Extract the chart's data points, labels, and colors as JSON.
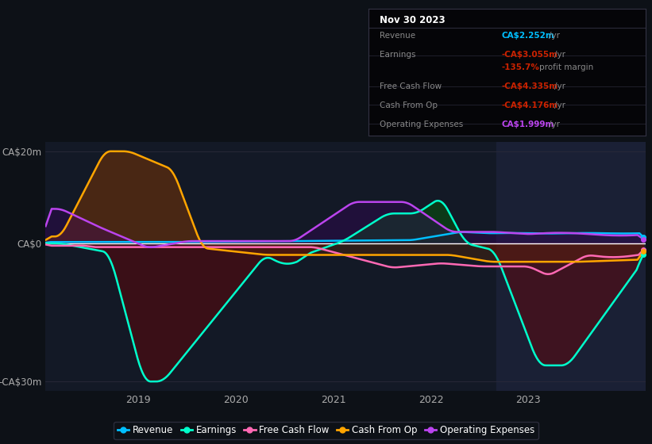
{
  "bg_color": "#0d1117",
  "plot_bg_color": "#131926",
  "highlight_bg_color": "#1a2035",
  "ylim": [
    -32,
    22
  ],
  "xlim": [
    2018.05,
    2024.2
  ],
  "yticks": [
    -30,
    0,
    20
  ],
  "ytick_labels": [
    "-CA$30m",
    "CA$0",
    "CA$20m"
  ],
  "xticks": [
    2019,
    2020,
    2021,
    2022,
    2023
  ],
  "highlight_x_start": 2022.67,
  "highlight_x_end": 2024.2,
  "colors": {
    "revenue": "#00bfff",
    "earnings": "#00ffcc",
    "free_cash_flow": "#ff69b4",
    "cash_from_op": "#ffa500",
    "operating_expenses": "#bb44ee"
  },
  "info_box": {
    "title": "Nov 30 2023",
    "rows": [
      {
        "label": "Revenue",
        "value": "CA$2.252m",
        "unit": "/yr",
        "val_color": "#00bfff",
        "margin": null
      },
      {
        "label": "Earnings",
        "value": "-CA$3.055m",
        "unit": "/yr",
        "val_color": "#cc2200",
        "margin": "-135.7%"
      },
      {
        "label": "Free Cash Flow",
        "value": "-CA$4.335m",
        "unit": "/yr",
        "val_color": "#cc2200",
        "margin": null
      },
      {
        "label": "Cash From Op",
        "value": "-CA$4.176m",
        "unit": "/yr",
        "val_color": "#cc2200",
        "margin": null
      },
      {
        "label": "Operating Expenses",
        "value": "CA$1.999m",
        "unit": "/yr",
        "val_color": "#bb44ee",
        "margin": null
      }
    ]
  },
  "legend": [
    {
      "label": "Revenue",
      "color": "#00bfff"
    },
    {
      "label": "Earnings",
      "color": "#00ffcc"
    },
    {
      "label": "Free Cash Flow",
      "color": "#ff69b4"
    },
    {
      "label": "Cash From Op",
      "color": "#ffa500"
    },
    {
      "label": "Operating Expenses",
      "color": "#bb44ee"
    }
  ]
}
